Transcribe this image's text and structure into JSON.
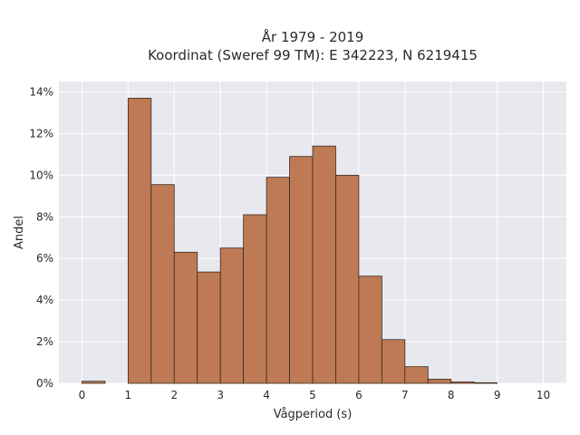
{
  "chart_data": {
    "type": "bar",
    "title_lines": [
      "År 1979 - 2019",
      "Koordinat (Sweref 99 TM): E 342223, N 6219415"
    ],
    "xlabel": "Vågperiod (s)",
    "ylabel": "Andel",
    "xlim": [
      -0.5,
      10.5
    ],
    "ylim": [
      0,
      14.5
    ],
    "x_ticks": [
      "0",
      "1",
      "2",
      "3",
      "4",
      "5",
      "6",
      "7",
      "8",
      "9",
      "10"
    ],
    "x_tick_values": [
      0,
      1,
      2,
      3,
      4,
      5,
      6,
      7,
      8,
      9,
      10
    ],
    "y_ticks": [
      "0%",
      "2%",
      "4%",
      "6%",
      "8%",
      "10%",
      "12%",
      "14%"
    ],
    "y_tick_values": [
      0,
      2,
      4,
      6,
      8,
      10,
      12,
      14
    ],
    "bin_width": 0.5,
    "bin_starts": [
      0,
      0.5,
      1,
      1.5,
      2,
      2.5,
      3,
      3.5,
      4,
      4.5,
      5,
      5.5,
      6,
      6.5,
      7,
      7.5,
      8,
      8.5,
      9,
      9.5
    ],
    "values": [
      0.1,
      0,
      13.7,
      9.55,
      6.3,
      5.35,
      6.5,
      8.1,
      9.9,
      10.9,
      11.4,
      10.0,
      5.15,
      2.1,
      0.8,
      0.2,
      0.07,
      0.03,
      0,
      0
    ],
    "colors": {
      "bar": "#bd7a55",
      "bar_edge": "#3b2a20",
      "plot_background": "#e8e8ef",
      "grid": "#ffffff",
      "text": "#2a2a2a"
    },
    "grid": true
  }
}
